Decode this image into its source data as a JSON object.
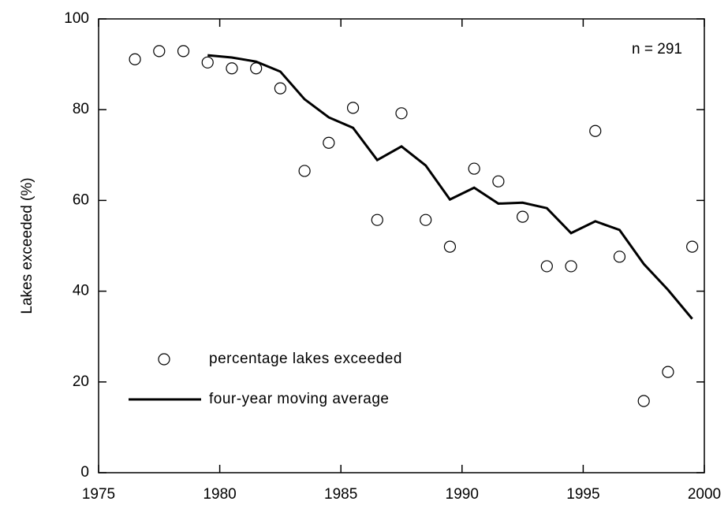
{
  "chart_data": {
    "type": "scatter",
    "y_label": "Lakes exceeded (%)",
    "annotation": "n = 291",
    "x": [
      1976.5,
      1977.5,
      1978.5,
      1979.5,
      1980.5,
      1981.5,
      1982.5,
      1983.5,
      1984.5,
      1985.5,
      1986.5,
      1987.5,
      1988.5,
      1989.5,
      1990.5,
      1991.5,
      1992.5,
      1993.5,
      1994.5,
      1995.5,
      1996.5,
      1997.5,
      1998.5,
      1999.5
    ],
    "series": [
      {
        "name": "percentage lakes exceeded",
        "mark": "circle",
        "color": "#000000",
        "values": [
          91.1,
          92.9,
          92.9,
          90.4,
          89.1,
          89.1,
          84.7,
          66.5,
          72.7,
          80.4,
          55.7,
          79.2,
          55.7,
          49.8,
          67.0,
          64.2,
          56.4,
          45.5,
          45.5,
          75.3,
          47.6,
          15.8,
          22.2,
          49.8
        ]
      },
      {
        "name": "four-year moving average",
        "mark": "line",
        "color": "#000000",
        "values": [
          null,
          null,
          null,
          92.0,
          91.5,
          90.6,
          88.4,
          82.3,
          78.3,
          76.0,
          68.9,
          71.9,
          67.7,
          60.2,
          62.8,
          59.3,
          59.5,
          58.3,
          52.8,
          55.4,
          53.5,
          46.0,
          40.3,
          33.9
        ]
      }
    ],
    "xlim": [
      1975,
      2000
    ],
    "xticks": [
      1975,
      1980,
      1985,
      1990,
      1995,
      2000
    ],
    "ylim": [
      0,
      100
    ],
    "yticks": [
      0,
      20,
      40,
      60,
      80,
      100
    ]
  }
}
